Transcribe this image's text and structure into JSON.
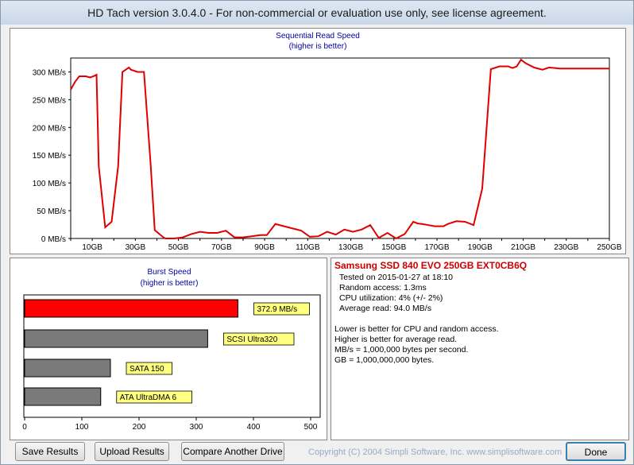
{
  "window": {
    "title": "HD Tach version 3.0.4.0  - For non-commercial or evaluation use only, see license agreement."
  },
  "colors": {
    "read_line": "#e00000",
    "burst_highlight": "#ff0000",
    "burst_other": "#7a7a7a",
    "label_bg": "#ffff80",
    "chart_title": "#0000a0"
  },
  "chart_data": [
    {
      "type": "line",
      "title": "Sequential Read Speed",
      "subtitle": "(higher is better)",
      "y_ticks": [
        "0 MB/s",
        "50 MB/s",
        "100 MB/s",
        "150 MB/s",
        "200 MB/s",
        "250 MB/s",
        "300 MB/s"
      ],
      "x_ticks": [
        "10GB",
        "30GB",
        "50GB",
        "70GB",
        "90GB",
        "110GB",
        "130GB",
        "150GB",
        "170GB",
        "190GB",
        "210GB",
        "230GB",
        "250GB"
      ],
      "ylim": [
        0,
        325
      ],
      "xlim": [
        0,
        250
      ],
      "x": [
        0,
        2,
        4,
        7,
        9,
        11,
        12,
        13,
        16,
        19,
        22,
        24,
        27,
        28,
        31,
        34,
        37,
        39,
        43,
        44,
        45,
        48,
        52,
        56,
        60,
        64,
        68,
        72,
        76,
        80,
        84,
        88,
        91,
        95,
        99,
        103,
        107,
        111,
        115,
        119,
        123,
        127,
        131,
        135,
        139,
        143,
        147,
        151,
        155,
        159,
        161,
        163,
        166,
        169,
        173,
        175,
        179,
        183,
        187,
        191,
        195,
        199,
        203,
        205,
        207,
        209,
        211,
        215,
        219,
        222,
        227,
        230,
        234,
        238,
        241,
        243,
        246,
        249,
        250
      ],
      "values": [
        268,
        282,
        292,
        292,
        290,
        293,
        295,
        130,
        20,
        30,
        130,
        300,
        308,
        304,
        300,
        300,
        140,
        15,
        2,
        0,
        0,
        0,
        2,
        8,
        12,
        10,
        10,
        14,
        2,
        2,
        4,
        6,
        6,
        26,
        22,
        18,
        14,
        3,
        4,
        12,
        7,
        16,
        12,
        16,
        24,
        1,
        10,
        0,
        8,
        30,
        27,
        26,
        24,
        22,
        22,
        26,
        31,
        30,
        24,
        90,
        305,
        310,
        310,
        307,
        310,
        322,
        316,
        308,
        304,
        308,
        306,
        306,
        306,
        306,
        306,
        306,
        306,
        306,
        306
      ]
    },
    {
      "type": "bar",
      "title": "Burst Speed",
      "subtitle": "(higher is better)",
      "categories": [
        "Samsung SSD 840 EVO 250GB EXT0CB6Q",
        "SCSI Ultra320",
        "SATA 150",
        "ATA UltraDMA 6"
      ],
      "values": [
        372.9,
        320,
        150,
        133
      ],
      "labels": [
        "372.9 MB/s",
        "SCSI Ultra320",
        "SATA 150",
        "ATA UltraDMA 6"
      ],
      "x_ticks": [
        "0",
        "100",
        "200",
        "300",
        "400",
        "500"
      ],
      "xlim": [
        0,
        500
      ]
    }
  ],
  "info": {
    "drive": "Samsung SSD 840 EVO 250GB EXT0CB6Q",
    "tested": "Tested on 2015-01-27 at 18:10",
    "random_access": "Random access: 1.3ms",
    "cpu": "CPU utilization: 4% (+/- 2%)",
    "avg_read": "Average read: 94.0 MB/s",
    "notes": [
      "Lower is better for CPU and random access.",
      "Higher is better for average read.",
      "MB/s = 1,000,000 bytes per second.",
      "GB = 1,000,000,000 bytes."
    ]
  },
  "buttons": {
    "save": "Save Results",
    "upload": "Upload Results",
    "compare": "Compare Another Drive",
    "done": "Done"
  },
  "copyright": "Copyright (C) 2004 Simpli Software, Inc. www.simplisoftware.com"
}
